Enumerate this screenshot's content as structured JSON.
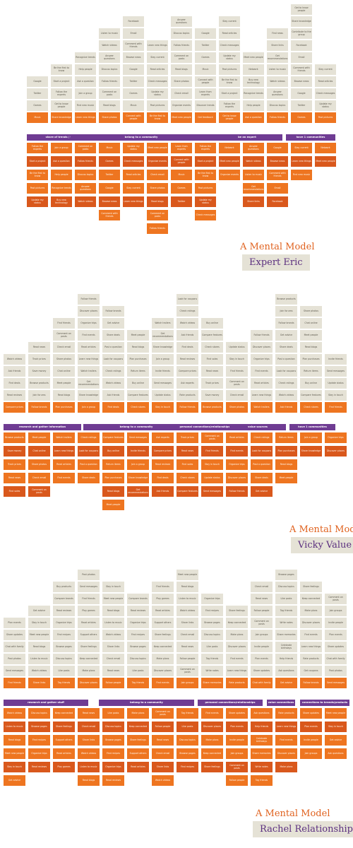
{
  "colors": {
    "gray": "#e5e2d6",
    "orange": "#ee7520",
    "red": "#d9581c",
    "purple": "#6f3c93"
  },
  "models": [
    {
      "caption": "A Mental Model",
      "person": "Expert Eric",
      "bands": [
        "share of trends / technologies",
        "belong to a community",
        "be an expert",
        "have 1 communities"
      ],
      "tiles": [
        "Music",
        "Games",
        "Twitter",
        "Google",
        "Browse news",
        "Comment with friends",
        "Email",
        "Facebook",
        "Contribute to the group",
        "Share knowledge",
        "Get to know people",
        "Follow the experts",
        "Start a project",
        "Be the first to know",
        "Post pictures",
        "Update my status",
        "Check messages",
        "Read articles",
        "Stay current",
        "Learn new things",
        "Find new music",
        "Join a group",
        "Ask a question",
        "Help people",
        "Recognize trends",
        "Buy new technology",
        "Network",
        "Meet new people",
        "Organize events",
        "Check email",
        "Share photos",
        "Read blogs",
        "Comment on posts",
        "Follow friends",
        "Discuss topics",
        "Answer questions",
        "Watch videos",
        "Listen to music",
        "Get recommendations",
        "Share links",
        "Find news",
        "Get feedback",
        "Discover trends",
        "Learn from experts",
        "Connect with people"
      ]
    },
    {
      "caption": "A Mental Model",
      "person": "Vicky Value",
      "bands": [
        "research and gather information",
        "belong to a community",
        "personal connections/relationships",
        "value sources",
        "have 1 communities"
      ],
      "tiles": [
        "Compare prices",
        "Read reviews",
        "Find deals",
        "Ask friends",
        "Watch videos",
        "Check ratings",
        "Look for coupons",
        "Post a question",
        "Share deals",
        "Get advice",
        "Follow brands",
        "Join forums",
        "Browse products",
        "Save money",
        "Track prices",
        "Read news",
        "Find sales",
        "Check stores",
        "Compare features",
        "Buy online",
        "Return items",
        "Plan purchases",
        "Read blogs",
        "Meet people",
        "Chat online",
        "Share photos",
        "Check email",
        "Comment on posts",
        "Find friends",
        "Stay in touch",
        "Update status",
        "Send messages",
        "Invite friends",
        "Join a group",
        "Share knowledge",
        "Get recommendations",
        "Watch trailers",
        "Learn new things",
        "Read articles",
        "Find events",
        "Organize trips",
        "Discover places",
        "Follow friends",
        "Rate products",
        "Ask experts"
      ]
    },
    {
      "caption": "A Mental Model",
      "person": "Rachel Relationship",
      "bands": [
        "research and gather stuff",
        "belong to a community",
        "personal connections/relationships",
        "value connections",
        "connections to brands/products"
      ],
      "tiles": [
        "Find friends",
        "Send messages",
        "Post photos",
        "Chat with family",
        "Share updates",
        "Plan events",
        "Invite people",
        "Join groups",
        "Comment on posts",
        "Follow people",
        "Read news",
        "Check email",
        "Share links",
        "Watch videos",
        "Listen to music",
        "Read blogs",
        "Meet new people",
        "Stay in touch",
        "Get advice",
        "Ask questions",
        "Help friends",
        "Celebrate birthdays",
        "Share memories",
        "Write notes",
        "Tag friends",
        "Like posts",
        "Discuss topics",
        "Browse pages",
        "Find recipes",
        "Organize trips",
        "Read reviews",
        "Compare brands",
        "Buy products",
        "Follow brands",
        "Get coupons",
        "Rate products",
        "Learn new things",
        "Find events",
        "Discover places",
        "Make plans",
        "Keep connected",
        "Share feelings",
        "Support others",
        "Read articles",
        "Play games"
      ]
    }
  ]
}
